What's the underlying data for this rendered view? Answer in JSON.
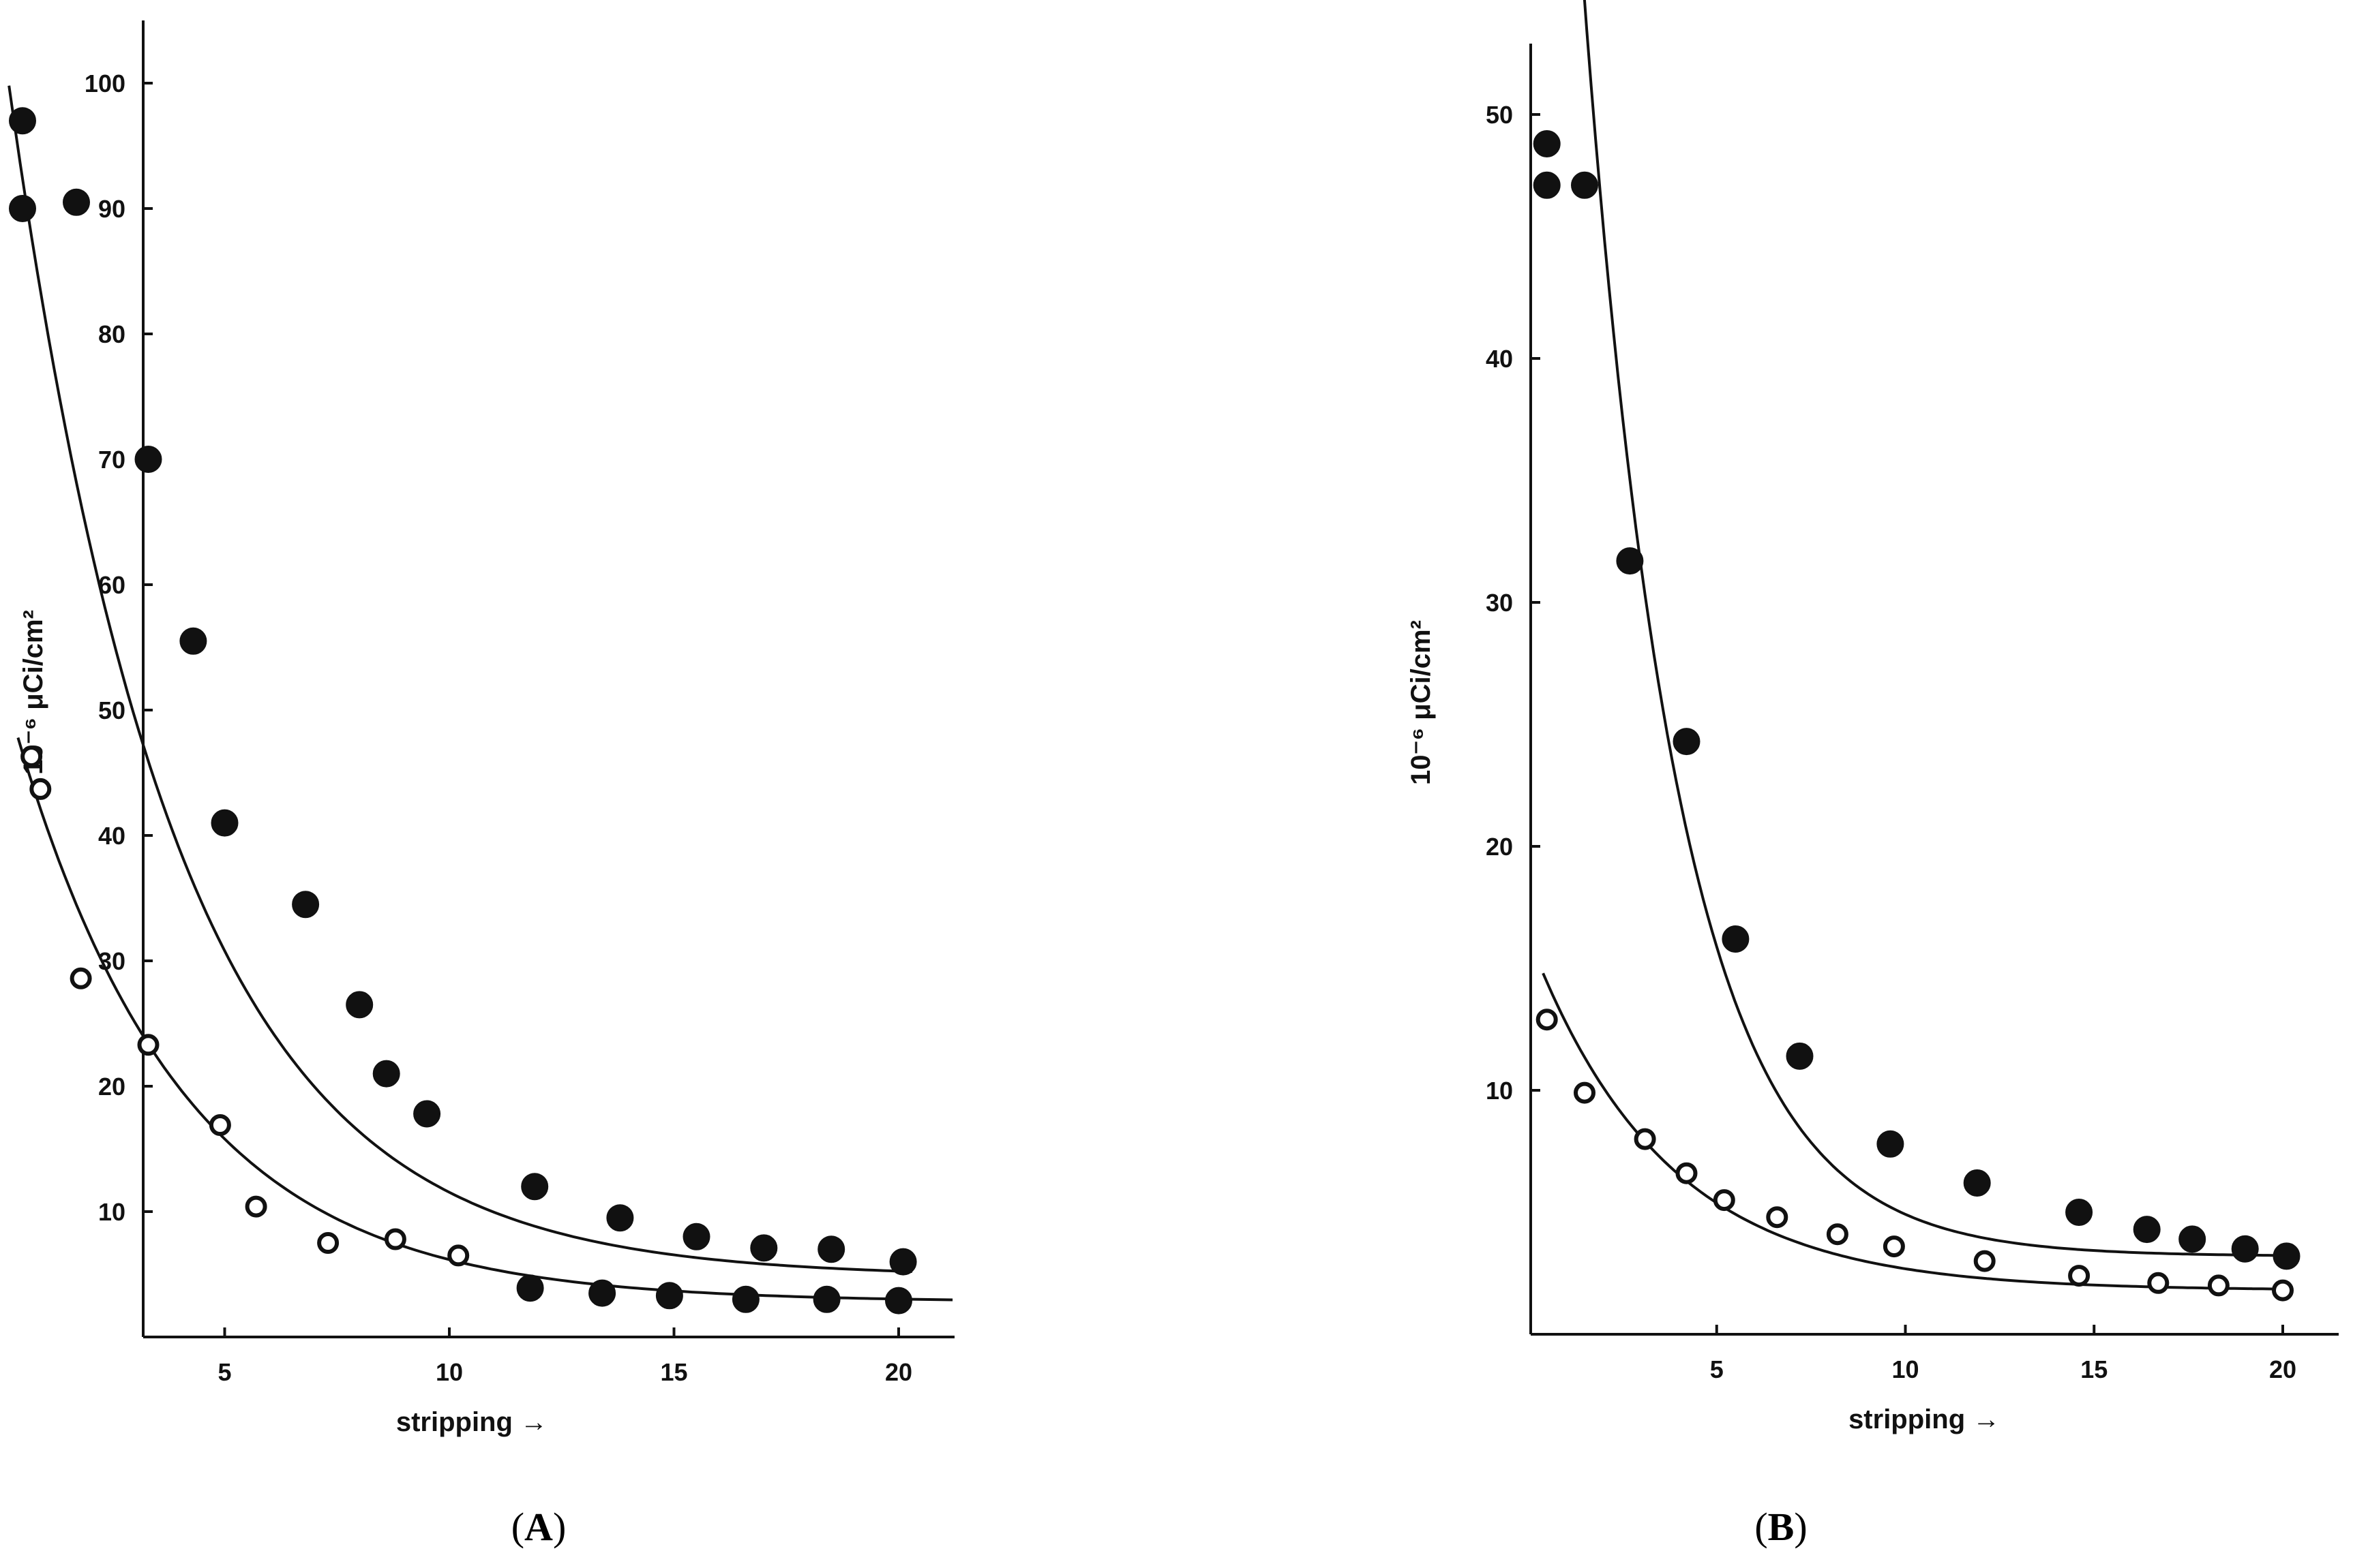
{
  "chart_data": [
    {
      "type": "scatter",
      "panel_label": "A",
      "xlabel": "stripping →",
      "ylabel": "10⁻⁶ μCi/cm²",
      "xlim": [
        0,
        21.5
      ],
      "ylim": [
        0,
        104
      ],
      "xticks": [
        5,
        10,
        15,
        20
      ],
      "yticks": [
        10,
        20,
        30,
        40,
        50,
        60,
        70,
        80,
        90,
        100
      ],
      "grid": false,
      "series": [
        {
          "marker": "filled",
          "x": [
            0.5,
            0.5,
            1.7,
            3.3,
            4.3,
            5.0,
            6.8,
            8.0,
            8.6,
            9.5,
            11.9,
            13.8,
            15.5,
            17.0,
            18.5,
            20.1,
            11.8,
            13.4,
            14.9,
            16.6,
            18.4,
            20.0
          ],
          "y": [
            97,
            90,
            90.5,
            70,
            55.5,
            41,
            34.5,
            26.5,
            21,
            17.8,
            12,
            9.5,
            8,
            7.1,
            7,
            6,
            3.9,
            3.5,
            3.3,
            3,
            3,
            2.9
          ]
        },
        {
          "marker": "open",
          "x": [
            0.7,
            0.9,
            1.8,
            3.3,
            4.9,
            5.7,
            7.3,
            8.8,
            10.2
          ],
          "y": [
            46.3,
            43.7,
            28.6,
            23.3,
            16.9,
            10.4,
            7.5,
            7.8,
            6.5
          ]
        }
      ]
    },
    {
      "type": "scatter",
      "panel_label": "B",
      "xlabel": "stripping →",
      "ylabel": "10⁻⁶ μCi/cm²",
      "xlim": [
        0,
        21.5
      ],
      "ylim": [
        0,
        51.5
      ],
      "xticks": [
        5,
        10,
        15,
        20
      ],
      "yticks": [
        10,
        20,
        30,
        40,
        50
      ],
      "grid": false,
      "series": [
        {
          "marker": "filled",
          "x": [
            0.5,
            0.5,
            1.5,
            2.7,
            4.2,
            5.5,
            7.2,
            9.6,
            11.9,
            14.6,
            16.4,
            17.6,
            19.0,
            20.1
          ],
          "y": [
            48.8,
            47.1,
            47.1,
            31.7,
            24.3,
            16.2,
            11.4,
            7.8,
            6.2,
            5,
            4.3,
            3.9,
            3.5,
            3.2
          ]
        },
        {
          "marker": "open",
          "x": [
            0.5,
            1.5,
            3.1,
            4.2,
            5.2,
            6.6,
            8.2,
            9.7,
            12.1,
            14.6,
            16.7,
            18.3,
            20.0
          ],
          "y": [
            12.9,
            9.9,
            8,
            6.6,
            5.5,
            4.8,
            4.1,
            3.6,
            3,
            2.4,
            2.1,
            2,
            1.8
          ]
        }
      ]
    }
  ]
}
